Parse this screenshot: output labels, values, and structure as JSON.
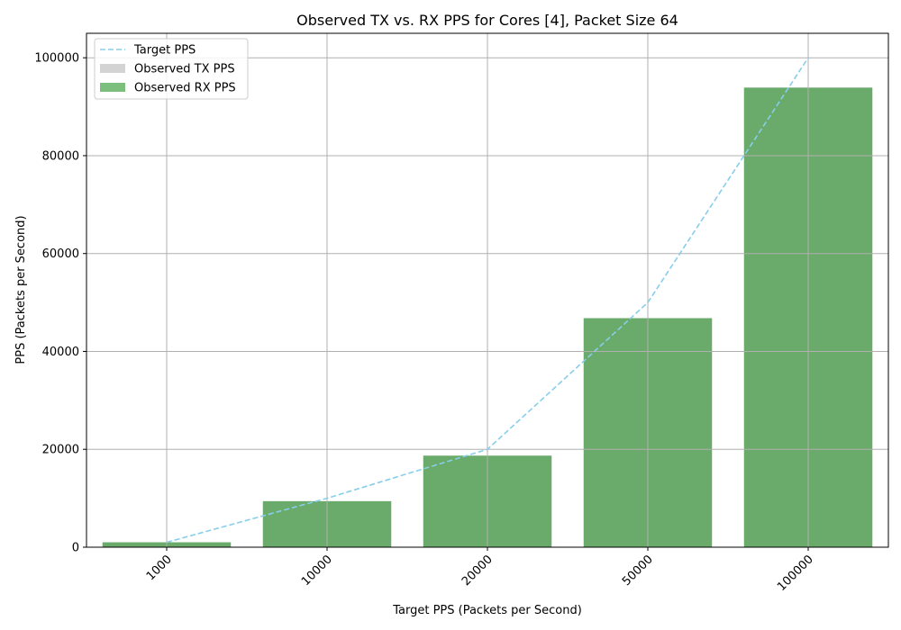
{
  "chart_data": {
    "type": "bar",
    "title": "Observed TX vs. RX PPS for Cores [4], Packet Size 64",
    "xlabel": "Target PPS (Packets per Second)",
    "ylabel": "PPS (Packets per Second)",
    "categories": [
      "1000",
      "10000",
      "20000",
      "50000",
      "100000"
    ],
    "ylim": [
      0,
      105000
    ],
    "yticks": [
      0,
      20000,
      40000,
      60000,
      80000,
      100000
    ],
    "grid": true,
    "legend_position": "top-left",
    "series": [
      {
        "name": "Target PPS",
        "kind": "line",
        "style": "dashed",
        "color": "#87ceeb",
        "values": [
          1000,
          10000,
          20000,
          50000,
          100000
        ]
      },
      {
        "name": "Observed TX PPS",
        "kind": "bar",
        "color": "#d3d3d3",
        "values": [
          1000,
          9400,
          18700,
          46800,
          93900
        ]
      },
      {
        "name": "Observed RX PPS",
        "kind": "bar",
        "color": "#6aaa6a",
        "legend_color": "#7cbf7c",
        "values": [
          1000,
          9400,
          18700,
          46800,
          93900
        ]
      }
    ]
  }
}
